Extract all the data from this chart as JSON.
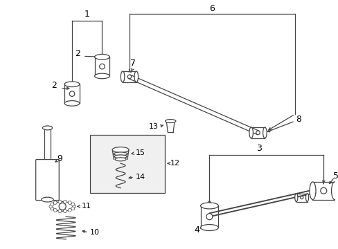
{
  "bg_color": "#ffffff",
  "line_color": "#444444",
  "text_color": "#000000",
  "figsize": [
    4.89,
    3.6
  ],
  "dpi": 100
}
